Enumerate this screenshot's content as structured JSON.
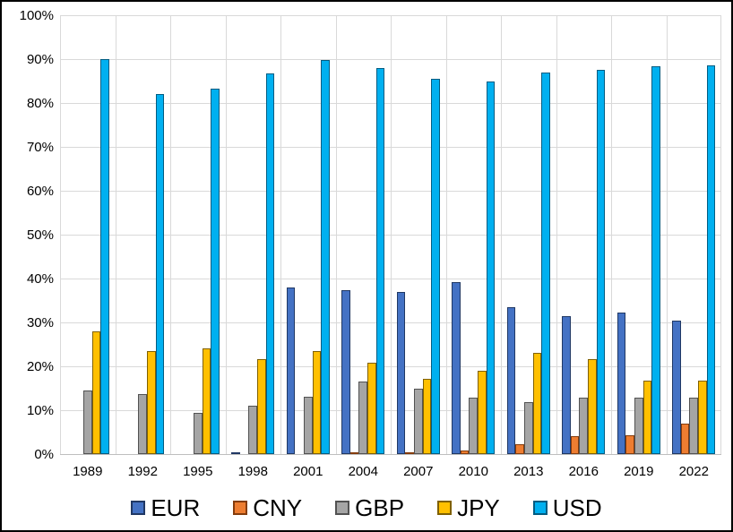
{
  "chart_data": {
    "type": "bar",
    "title": "",
    "xlabel": "",
    "ylabel": "",
    "categories": [
      "1989",
      "1992",
      "1995",
      "1998",
      "2001",
      "2004",
      "2007",
      "2010",
      "2013",
      "2016",
      "2019",
      "2022"
    ],
    "series": [
      {
        "name": "EUR",
        "color": "#4472C4",
        "border": "#203864",
        "values": [
          0,
          0,
          0,
          0.3,
          37.9,
          37.4,
          37.0,
          39.1,
          33.4,
          31.4,
          32.3,
          30.5
        ]
      },
      {
        "name": "CNY",
        "color": "#ED7D31",
        "border": "#843C0C",
        "values": [
          0,
          0,
          0,
          0,
          0,
          0.1,
          0.5,
          0.9,
          2.2,
          4.0,
          4.3,
          7.0
        ]
      },
      {
        "name": "GBP",
        "color": "#A5A5A5",
        "border": "#525252",
        "values": [
          14.4,
          13.6,
          9.4,
          11.0,
          13.0,
          16.5,
          14.9,
          12.9,
          11.8,
          12.8,
          12.8,
          12.9
        ]
      },
      {
        "name": "JPY",
        "color": "#FFC000",
        "border": "#7F6000",
        "values": [
          28.0,
          23.4,
          24.1,
          21.7,
          23.5,
          20.8,
          17.2,
          19.0,
          23.0,
          21.6,
          16.8,
          16.7
        ]
      },
      {
        "name": "USD",
        "color": "#00B0F0",
        "border": "#015C81",
        "values": [
          90.0,
          82.0,
          83.3,
          86.8,
          89.9,
          88.0,
          85.6,
          84.9,
          87.0,
          87.6,
          88.3,
          88.5
        ]
      }
    ],
    "ylim": [
      0,
      100
    ],
    "y_tick_step": 10,
    "y_axis_ticks": [
      "100%",
      "90%",
      "80%",
      "70%",
      "60%",
      "50%",
      "40%",
      "30%",
      "20%",
      "10%",
      "0%"
    ],
    "grid": true,
    "legend_position": "bottom"
  },
  "colors": {
    "background": "#FFFFFF",
    "outer_border": "#000000",
    "gridline": "#D9D9D9",
    "axis_line": "#BFBFBF",
    "text": "#000000"
  }
}
